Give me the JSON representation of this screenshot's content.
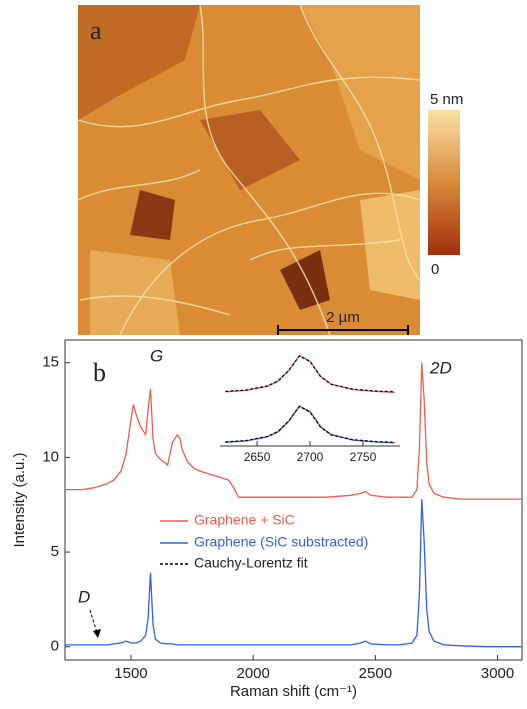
{
  "image_panel": {
    "label": "a",
    "colorbar_max": "5 nm",
    "colorbar_min": "0",
    "scale_bar": "2 µm"
  },
  "chart_data": [
    {
      "type": "line",
      "panel_label": "b",
      "x_label": "Raman shift (cm⁻¹)",
      "y_label": "Intensity (a.u.)",
      "annotations": {
        "G": "G",
        "2D": "2D",
        "D": "D"
      },
      "xlim": [
        1230,
        3100
      ],
      "ylim": [
        -0.7,
        16.2
      ],
      "xticks": [
        1500,
        2000,
        2500,
        3000
      ],
      "yticks": [
        0,
        5,
        10,
        15
      ],
      "x": [
        1230,
        1300,
        1350,
        1400,
        1430,
        1460,
        1480,
        1500,
        1510,
        1520,
        1540,
        1560,
        1570,
        1580,
        1590,
        1600,
        1620,
        1650,
        1670,
        1690,
        1700,
        1710,
        1730,
        1760,
        1800,
        1850,
        1900,
        1920,
        1940,
        2000,
        2100,
        2200,
        2300,
        2400,
        2440,
        2460,
        2480,
        2550,
        2600,
        2650,
        2670,
        2680,
        2690,
        2700,
        2710,
        2720,
        2740,
        2780,
        2850,
        2950,
        3100
      ],
      "series": [
        {
          "name": "Graphene + SiC",
          "color": "#f25a4c",
          "values": [
            8.3,
            8.3,
            8.4,
            8.6,
            8.8,
            9.3,
            10.2,
            12.0,
            12.8,
            12.3,
            11.6,
            11.2,
            12.5,
            13.6,
            11.0,
            10.2,
            9.9,
            9.6,
            10.8,
            11.2,
            11.0,
            10.4,
            9.8,
            9.4,
            9.2,
            9.0,
            8.8,
            8.4,
            7.9,
            7.9,
            7.9,
            7.9,
            7.9,
            8.0,
            8.1,
            8.2,
            8.0,
            7.9,
            7.9,
            7.9,
            8.3,
            10.5,
            15.0,
            13.0,
            9.8,
            8.6,
            8.1,
            7.9,
            7.8,
            7.8,
            7.8
          ]
        },
        {
          "name": "Graphene (SiC substracted)",
          "color": "#2f5ff0",
          "values": [
            0.1,
            0.1,
            0.1,
            0.1,
            0.15,
            0.2,
            0.3,
            0.2,
            0.2,
            0.2,
            0.3,
            0.6,
            1.5,
            3.9,
            1.2,
            0.4,
            0.2,
            0.15,
            0.15,
            0.1,
            0.1,
            0.1,
            0.1,
            0.1,
            0.1,
            0.1,
            0.1,
            0.1,
            0.1,
            0.1,
            0.1,
            0.1,
            0.1,
            0.1,
            0.2,
            0.3,
            0.15,
            0.1,
            0.1,
            0.2,
            0.6,
            2.8,
            7.8,
            5.5,
            2.0,
            0.8,
            0.3,
            0.1,
            0.05,
            0.0,
            0.0
          ]
        }
      ],
      "legend_extra": {
        "name": "Cauchy-Lorentz fit",
        "color": "#000000",
        "dash": true
      }
    },
    {
      "type": "line",
      "xlim": [
        2615,
        2785
      ],
      "ylim": [
        0,
        2.2
      ],
      "xticks": [
        2650,
        2700,
        2750
      ],
      "x": [
        2620,
        2640,
        2660,
        2670,
        2680,
        2690,
        2700,
        2710,
        2720,
        2740,
        2760,
        2780
      ],
      "series": [
        {
          "color": "#f25a4c",
          "values": [
            1.18,
            1.21,
            1.3,
            1.41,
            1.64,
            1.97,
            1.85,
            1.52,
            1.35,
            1.23,
            1.19,
            1.17
          ]
        },
        {
          "color": "#000000",
          "dash": true,
          "values": [
            1.19,
            1.22,
            1.31,
            1.42,
            1.65,
            1.96,
            1.84,
            1.51,
            1.34,
            1.24,
            1.2,
            1.18
          ]
        },
        {
          "color": "#2f5ff0",
          "values": [
            0.08,
            0.11,
            0.2,
            0.31,
            0.54,
            0.87,
            0.75,
            0.42,
            0.25,
            0.13,
            0.09,
            0.07
          ]
        },
        {
          "color": "#000000",
          "dash": true,
          "values": [
            0.09,
            0.12,
            0.21,
            0.32,
            0.55,
            0.86,
            0.74,
            0.41,
            0.24,
            0.14,
            0.1,
            0.08
          ]
        }
      ]
    }
  ]
}
